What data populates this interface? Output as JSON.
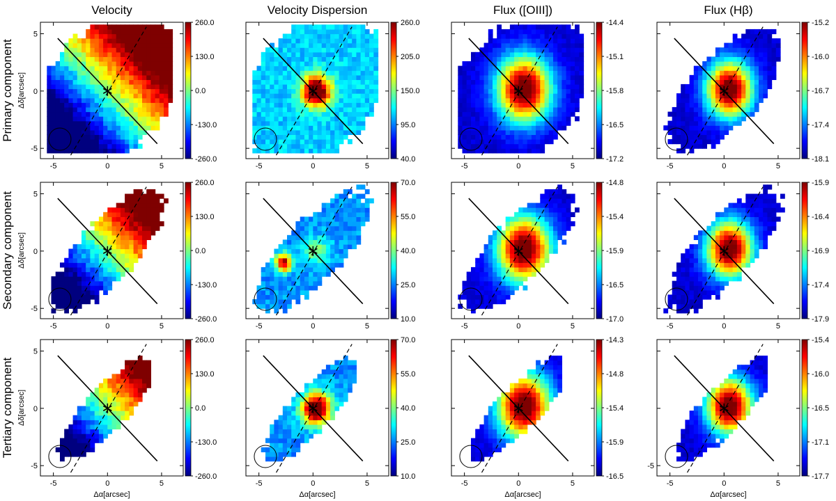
{
  "figure": {
    "column_titles": [
      "Velocity",
      "Velocity Dispersion",
      "Flux ([OIII])",
      "Flux (Hβ)"
    ],
    "row_titles": [
      "Primary component",
      "Secondary component",
      "Tertiary component"
    ],
    "xlabel": "Δα[arcsec]",
    "ylabel": "Δδ[arcsec]",
    "x_ticks": [
      "-5",
      "0",
      "5"
    ],
    "y_ticks": [
      "5",
      "0",
      "-5"
    ],
    "stray_tick": "-5",
    "colormap": [
      "#00007f",
      "#0000ff",
      "#007fff",
      "#00ffff",
      "#7fff7f",
      "#ffff00",
      "#ff7f00",
      "#ff0000",
      "#7f0000"
    ]
  },
  "chart_data": [
    {
      "type": "heatmap",
      "row": "Primary component",
      "column": "Velocity",
      "colorbar_ticks": [
        "260.0",
        "130.0",
        "0.0",
        "-130.0",
        "-260.0"
      ],
      "range": [
        -260,
        260
      ]
    },
    {
      "type": "heatmap",
      "row": "Primary component",
      "column": "Velocity Dispersion",
      "colorbar_ticks": [
        "260.0",
        "205.0",
        "150.0",
        "95.0",
        "40.0"
      ],
      "range": [
        40,
        260
      ]
    },
    {
      "type": "heatmap",
      "row": "Primary component",
      "column": "Flux ([OIII])",
      "colorbar_ticks": [
        "-14.4",
        "-15.1",
        "-15.8",
        "-16.5",
        "-17.2"
      ],
      "range": [
        -17.2,
        -14.4
      ]
    },
    {
      "type": "heatmap",
      "row": "Primary component",
      "column": "Flux (Hβ)",
      "colorbar_ticks": [
        "-15.2",
        "-16.0",
        "-16.7",
        "-17.4",
        "-18.1"
      ],
      "range": [
        -18.1,
        -15.2
      ]
    },
    {
      "type": "heatmap",
      "row": "Secondary component",
      "column": "Velocity",
      "colorbar_ticks": [
        "260.0",
        "130.0",
        "0.0",
        "-130.0",
        "-260.0"
      ],
      "range": [
        -260,
        260
      ]
    },
    {
      "type": "heatmap",
      "row": "Secondary component",
      "column": "Velocity Dispersion",
      "colorbar_ticks": [
        "70.0",
        "55.0",
        "40.0",
        "25.0",
        "10.0"
      ],
      "range": [
        10,
        70
      ]
    },
    {
      "type": "heatmap",
      "row": "Secondary component",
      "column": "Flux ([OIII])",
      "colorbar_ticks": [
        "-14.8",
        "-15.4",
        "-15.9",
        "-16.5",
        "-17.0"
      ],
      "range": [
        -17.0,
        -14.8
      ]
    },
    {
      "type": "heatmap",
      "row": "Secondary component",
      "column": "Flux (Hβ)",
      "colorbar_ticks": [
        "-15.9",
        "-16.4",
        "-16.9",
        "-17.4",
        "-17.9"
      ],
      "range": [
        -17.9,
        -15.9
      ]
    },
    {
      "type": "heatmap",
      "row": "Tertiary component",
      "column": "Velocity",
      "colorbar_ticks": [
        "260.0",
        "130.0",
        "0.0",
        "-130.0",
        "-260.0"
      ],
      "range": [
        -260,
        260
      ]
    },
    {
      "type": "heatmap",
      "row": "Tertiary component",
      "column": "Velocity Dispersion",
      "colorbar_ticks": [
        "70.0",
        "55.0",
        "40.0",
        "25.0",
        "10.0"
      ],
      "range": [
        10,
        70
      ]
    },
    {
      "type": "heatmap",
      "row": "Tertiary component",
      "column": "Flux ([OIII])",
      "colorbar_ticks": [
        "-14.3",
        "-14.8",
        "-15.4",
        "-15.9",
        "-16.5"
      ],
      "range": [
        -16.5,
        -14.3
      ]
    },
    {
      "type": "heatmap",
      "row": "Tertiary component",
      "column": "Flux (Hβ)",
      "colorbar_ticks": [
        "-15.4",
        "-16.0",
        "-16.5",
        "-17.1",
        "-17.7"
      ],
      "range": [
        -17.7,
        -15.4
      ]
    }
  ]
}
